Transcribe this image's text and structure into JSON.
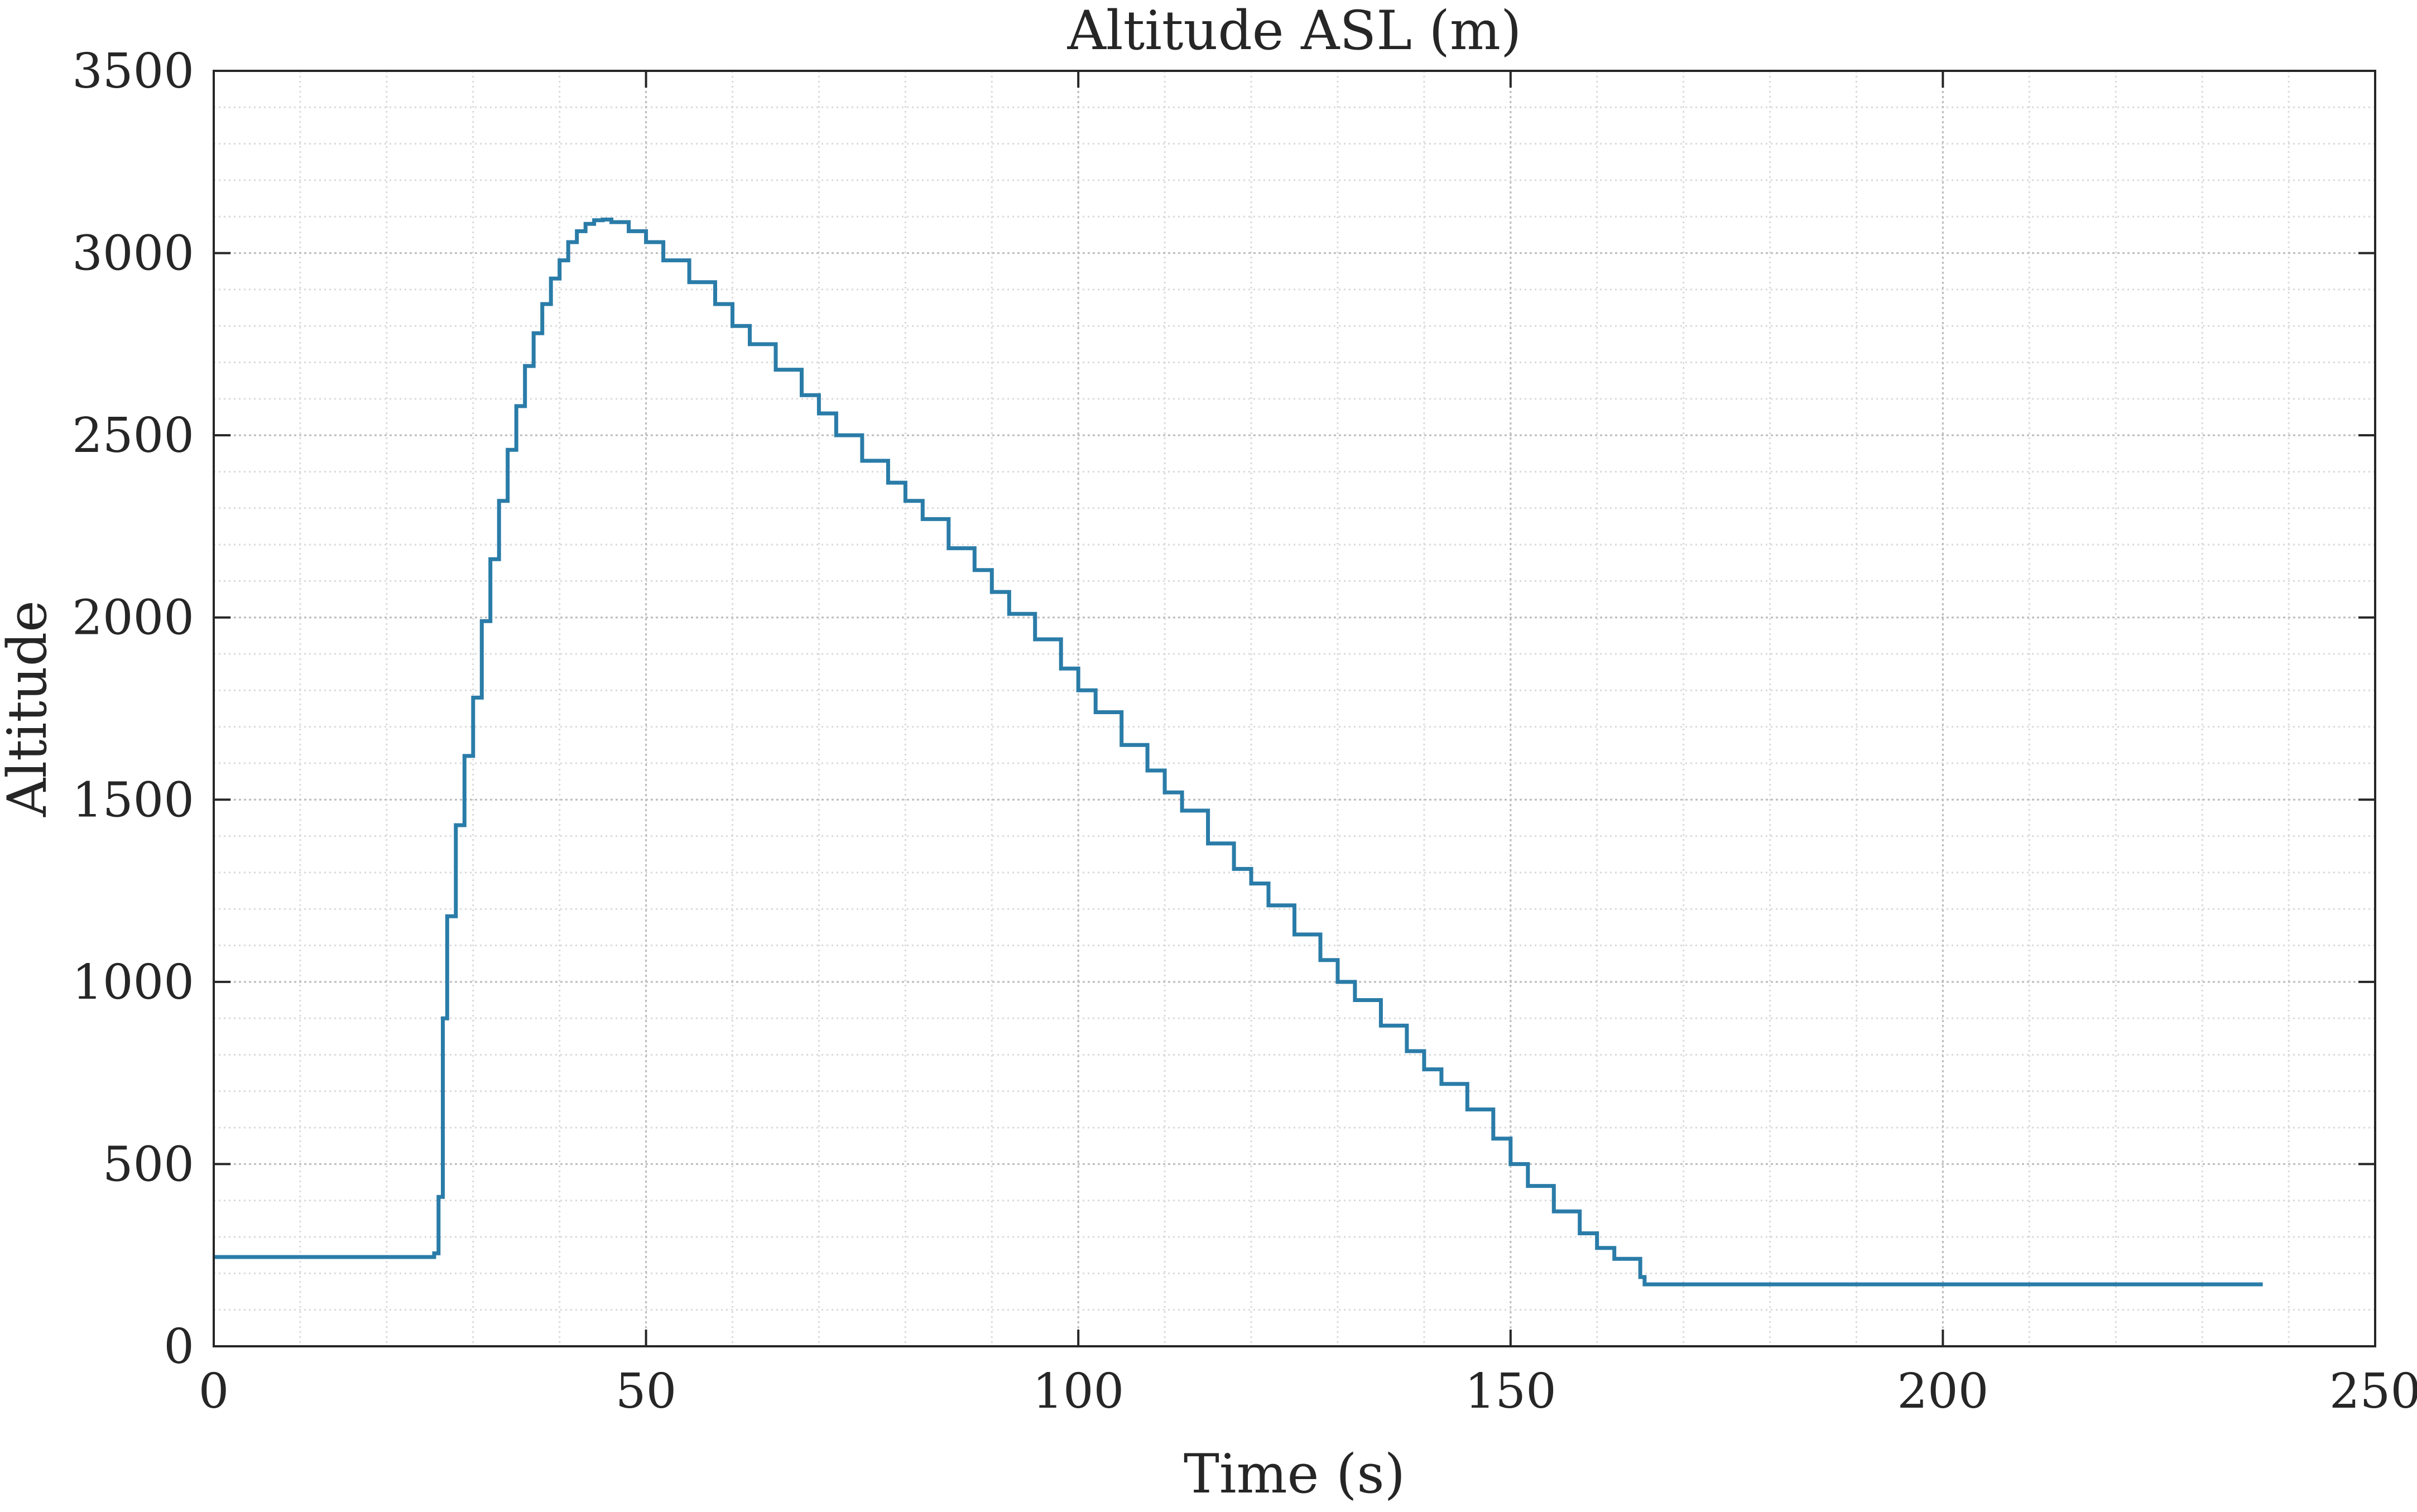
{
  "chart_data": {
    "type": "line",
    "title": "Altitude ASL (m)",
    "xlabel": "Time (s)",
    "ylabel": "Altitude",
    "xlim": [
      0,
      250
    ],
    "ylim": [
      0,
      3500
    ],
    "xticks": [
      0,
      50,
      100,
      150,
      200,
      250
    ],
    "yticks": [
      0,
      500,
      1000,
      1500,
      2000,
      2500,
      3000,
      3500
    ],
    "xtick_labels": [
      "0",
      "50",
      "100",
      "150",
      "200",
      "250"
    ],
    "ytick_labels": [
      "0",
      "500",
      "1000",
      "1500",
      "2000",
      "2500",
      "3000",
      "3500"
    ],
    "grid": true,
    "minor_grid": true,
    "line_color": "#2a7ca8",
    "series": [
      {
        "x": [
          0,
          25,
          25.5,
          26,
          26.5,
          27,
          28,
          29,
          30,
          31,
          32,
          33,
          34,
          35,
          36,
          37,
          38,
          39,
          40,
          41,
          42,
          43,
          44,
          45,
          46,
          48,
          50,
          52,
          55,
          58,
          60,
          62,
          65,
          68,
          70,
          72,
          75,
          78,
          80,
          82,
          85,
          88,
          90,
          92,
          95,
          98,
          100,
          102,
          105,
          108,
          110,
          112,
          115,
          118,
          120,
          122,
          125,
          128,
          130,
          132,
          135,
          138,
          140,
          142,
          145,
          148,
          150,
          152,
          155,
          158,
          160,
          162,
          165,
          165.5,
          170,
          200,
          237
        ],
        "y": [
          245,
          245,
          255,
          410,
          900,
          1180,
          1430,
          1620,
          1780,
          1990,
          2160,
          2320,
          2460,
          2580,
          2690,
          2780,
          2860,
          2930,
          2980,
          3030,
          3060,
          3080,
          3090,
          3092,
          3085,
          3060,
          3030,
          2980,
          2920,
          2860,
          2800,
          2750,
          2680,
          2610,
          2560,
          2500,
          2430,
          2370,
          2320,
          2270,
          2190,
          2130,
          2070,
          2010,
          1940,
          1860,
          1800,
          1740,
          1650,
          1580,
          1520,
          1470,
          1380,
          1310,
          1270,
          1210,
          1130,
          1060,
          1000,
          950,
          880,
          810,
          760,
          720,
          650,
          570,
          500,
          440,
          370,
          310,
          270,
          240,
          190,
          170,
          170,
          170,
          170
        ]
      }
    ]
  }
}
